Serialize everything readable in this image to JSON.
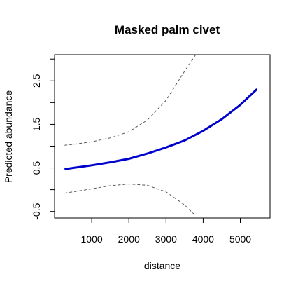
{
  "chart_data": {
    "type": "line",
    "title": "Masked palm civet",
    "xlabel": "distance",
    "ylabel": "Predicted abundance",
    "xlim": [
      0,
      5800
    ],
    "ylim": [
      -0.65,
      3.1
    ],
    "x_ticks": [
      1000,
      2000,
      3000,
      4000,
      5000
    ],
    "x_tick_labels": [
      "1000",
      "2000",
      "3000",
      "4000",
      "5000"
    ],
    "y_ticks": [
      -0.5,
      0,
      0.5,
      1,
      1.5,
      2,
      2.5,
      3
    ],
    "y_tick_labels": [
      "-0.5",
      "",
      "0.5",
      "",
      "1.5",
      "",
      "2.5",
      ""
    ],
    "grid": false,
    "series": [
      {
        "role": "fit",
        "color": "#0000cd",
        "line_style": "solid",
        "x": [
          270,
          500,
          1000,
          1500,
          2000,
          2500,
          3000,
          3500,
          4000,
          4500,
          5000,
          5450
        ],
        "y": [
          0.47,
          0.5,
          0.56,
          0.63,
          0.71,
          0.83,
          0.97,
          1.13,
          1.35,
          1.62,
          1.95,
          2.31
        ]
      },
      {
        "role": "upper",
        "color": "#555555",
        "line_style": "dashed",
        "x": [
          270,
          500,
          1000,
          1500,
          2000,
          2500,
          3000,
          3500,
          3800
        ],
        "y": [
          1.02,
          1.04,
          1.1,
          1.19,
          1.33,
          1.6,
          2.05,
          2.72,
          3.1
        ]
      },
      {
        "role": "lower",
        "color": "#555555",
        "line_style": "dashed",
        "x": [
          270,
          500,
          1000,
          1500,
          2000,
          2500,
          3000,
          3500,
          3800
        ],
        "y": [
          -0.08,
          -0.05,
          0.02,
          0.09,
          0.13,
          0.1,
          -0.05,
          -0.35,
          -0.6
        ]
      }
    ]
  }
}
